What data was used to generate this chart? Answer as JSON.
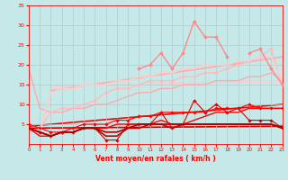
{
  "x": [
    0,
    1,
    2,
    3,
    4,
    5,
    6,
    7,
    8,
    9,
    10,
    11,
    12,
    13,
    14,
    15,
    16,
    17,
    18,
    19,
    20,
    21,
    22,
    23
  ],
  "series": [
    {
      "y": [
        19,
        9,
        8,
        8,
        9,
        9,
        10,
        10,
        11,
        12,
        13,
        13,
        14,
        14,
        15,
        15,
        15,
        16,
        16,
        16,
        17,
        17,
        18,
        16
      ],
      "color": "#ffaaaa",
      "lw": 1.0,
      "marker": null,
      "zorder": 2
    },
    {
      "y": [
        5,
        4,
        8,
        9,
        9,
        10,
        11,
        13,
        14,
        14,
        15,
        16,
        16,
        16,
        17,
        17,
        18,
        18,
        19,
        20,
        21,
        22,
        24,
        15
      ],
      "color": "#ffbbbb",
      "lw": 1.0,
      "marker": "D",
      "ms": 2.0,
      "zorder": 2
    },
    {
      "y": [
        4,
        3,
        13,
        14,
        14,
        15,
        15,
        15,
        16,
        16,
        17,
        17,
        18,
        18,
        19,
        19,
        20,
        20,
        20,
        21,
        21,
        22,
        22,
        16
      ],
      "color": "#ffcccc",
      "lw": 1.2,
      "marker": null,
      "zorder": 2
    },
    {
      "y": [
        null,
        null,
        null,
        null,
        null,
        null,
        null,
        null,
        null,
        null,
        19,
        20,
        23,
        19,
        23,
        31,
        27,
        27,
        22,
        null,
        23,
        24,
        19,
        15
      ],
      "color": "#ff8888",
      "lw": 1.0,
      "marker": "D",
      "ms": 2.0,
      "zorder": 3
    },
    {
      "y": [
        4,
        3,
        2,
        3,
        3,
        4,
        4,
        1,
        1,
        5,
        5,
        5,
        8,
        4,
        5,
        11,
        8,
        10,
        8,
        9,
        6,
        6,
        6,
        4
      ],
      "color": "#dd0000",
      "lw": 0.8,
      "marker": "D",
      "ms": 1.8,
      "zorder": 4
    },
    {
      "y": [
        5,
        4,
        3,
        3,
        4,
        5,
        5,
        5,
        6,
        6,
        7,
        7,
        8,
        8,
        8,
        8,
        8,
        9,
        9,
        9,
        10,
        9,
        9,
        9
      ],
      "color": "#ff0000",
      "lw": 0.8,
      "marker": "D",
      "ms": 1.8,
      "zorder": 4
    },
    {
      "y": [
        4,
        2,
        2,
        3,
        3,
        4,
        4,
        4,
        5,
        5,
        5,
        5,
        6,
        5,
        5,
        6,
        7,
        8,
        8,
        8,
        9,
        9,
        9,
        9
      ],
      "color": "#ff0000",
      "lw": 1.0,
      "marker": null,
      "zorder": 4
    },
    {
      "y": [
        4,
        3,
        2,
        3,
        3,
        4,
        4,
        2,
        2,
        4,
        4,
        5,
        5,
        4,
        5,
        5,
        5,
        5,
        5,
        5,
        5,
        5,
        5,
        4
      ],
      "color": "#cc0000",
      "lw": 1.2,
      "marker": null,
      "zorder": 4
    },
    {
      "y": [
        4,
        3,
        2,
        3,
        3,
        4,
        4,
        3,
        3,
        4,
        5,
        5,
        5,
        5,
        5,
        5,
        5,
        5,
        5,
        5,
        5,
        5,
        5,
        4
      ],
      "color": "#aa0000",
      "lw": 1.2,
      "marker": null,
      "zorder": 4
    }
  ],
  "trend_lines": [
    {
      "x0": 0,
      "y0": 4.5,
      "x1": 23,
      "y1": 10,
      "color": "#ff0000",
      "lw": 1.2
    },
    {
      "x0": 0,
      "y0": 4.0,
      "x1": 23,
      "y1": 4.5,
      "color": "#cc0000",
      "lw": 1.2
    },
    {
      "x0": 2,
      "y0": 13.5,
      "x1": 23,
      "y1": 22,
      "color": "#ffaaaa",
      "lw": 1.2
    },
    {
      "x0": 2,
      "y0": 14.5,
      "x1": 23,
      "y1": 16,
      "color": "#ffcccc",
      "lw": 1.2
    }
  ],
  "xlabel": "Vent moyen/en rafales ( km/h )",
  "xlim": [
    0,
    23
  ],
  "ylim": [
    0,
    35
  ],
  "ytick_vals": [
    5,
    10,
    15,
    20,
    25,
    30,
    35
  ],
  "xtick_vals": [
    0,
    1,
    2,
    3,
    4,
    5,
    6,
    7,
    8,
    9,
    10,
    11,
    12,
    13,
    14,
    15,
    16,
    17,
    18,
    19,
    20,
    21,
    22,
    23
  ],
  "bg_color": "#c5e8e8",
  "grid_color": "#b0cccc",
  "tick_color": "#ff0000",
  "label_color": "#ff0000"
}
